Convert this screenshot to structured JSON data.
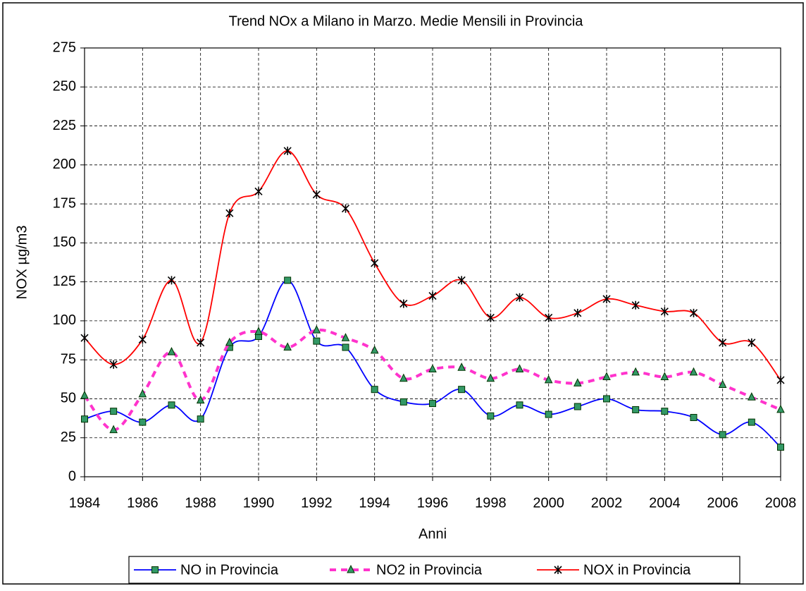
{
  "chart_data": {
    "type": "line",
    "title": "Trend NOx a Milano in Marzo. Medie Mensili in Provincia",
    "x_label": "Anni",
    "y_label": "NOX µg/m3",
    "x": [
      1984,
      1985,
      1986,
      1987,
      1988,
      1989,
      1990,
      1991,
      1992,
      1993,
      1994,
      1995,
      1996,
      1997,
      1998,
      1999,
      2000,
      2001,
      2002,
      2003,
      2004,
      2005,
      2006,
      2007,
      2008
    ],
    "series": [
      {
        "name": "NO in Provincia",
        "color": "#0000ff",
        "line_style": "solid",
        "marker": "square",
        "values": [
          37,
          42,
          35,
          46,
          37,
          83,
          90,
          126,
          87,
          83,
          56,
          48,
          47,
          56,
          39,
          46,
          40,
          45,
          50,
          43,
          42,
          38,
          27,
          35,
          19
        ]
      },
      {
        "name": "NO2 in Provincia",
        "color": "#ff33cc",
        "line_style": "dashed",
        "marker": "triangle",
        "values": [
          52,
          30,
          53,
          80,
          49,
          86,
          93,
          83,
          94,
          89,
          81,
          63,
          69,
          70,
          63,
          69,
          62,
          60,
          64,
          67,
          64,
          67,
          59,
          51,
          43
        ]
      },
      {
        "name": "NOX in Provincia",
        "color": "#ff0000",
        "line_style": "solid",
        "marker": "star",
        "values": [
          89,
          72,
          88,
          126,
          86,
          169,
          183,
          209,
          181,
          172,
          137,
          111,
          116,
          126,
          102,
          115,
          102,
          105,
          114,
          110,
          106,
          105,
          86,
          86,
          62
        ]
      }
    ],
    "xlim": [
      1984,
      2008
    ],
    "xticks": [
      1984,
      1986,
      1988,
      1990,
      1992,
      1994,
      1996,
      1998,
      2000,
      2002,
      2004,
      2006,
      2008
    ],
    "ylim": [
      0,
      275
    ],
    "yticks": [
      0,
      25,
      50,
      75,
      100,
      125,
      150,
      175,
      200,
      225,
      250,
      275
    ],
    "grid": true,
    "smooth": true,
    "legend": "bottom"
  }
}
